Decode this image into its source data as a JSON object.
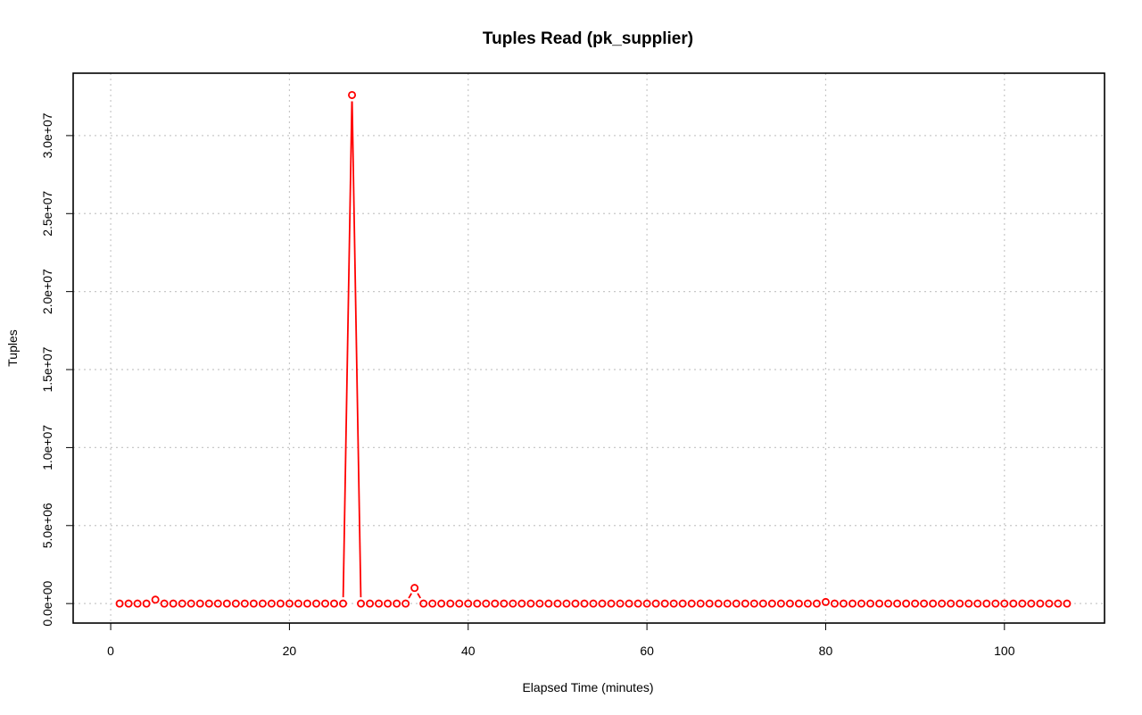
{
  "chart_data": {
    "type": "line",
    "title": "Tuples Read (pk_supplier)",
    "xlabel": "Elapsed Time (minutes)",
    "ylabel": "Tuples",
    "xlim": [
      -4.2,
      111.2
    ],
    "ylim": [
      -1250000,
      34000000
    ],
    "x_ticks": [
      0,
      20,
      40,
      60,
      80,
      100
    ],
    "x_tick_labels": [
      "0",
      "20",
      "40",
      "60",
      "80",
      "100"
    ],
    "y_ticks": [
      0,
      5000000,
      10000000,
      15000000,
      20000000,
      25000000,
      30000000
    ],
    "y_tick_labels": [
      "0.0e+00",
      "5.0e+06",
      "1.0e+07",
      "1.5e+07",
      "2.0e+07",
      "2.5e+07",
      "3.0e+07"
    ],
    "grid": true,
    "series_color": "#ff0000",
    "series": [
      {
        "x": [
          1,
          2,
          3,
          4,
          5,
          6,
          7,
          8,
          9,
          10,
          11,
          12,
          13,
          14,
          15,
          16,
          17,
          18,
          19,
          20,
          21,
          22,
          23,
          24,
          25,
          26,
          27,
          28,
          29,
          30,
          31,
          32,
          33,
          34,
          35,
          36,
          37,
          38,
          39,
          40,
          41,
          42,
          43,
          44,
          45,
          46,
          47,
          48,
          49,
          50,
          51,
          52,
          53,
          54,
          55,
          56,
          57,
          58,
          59,
          60,
          61,
          62,
          63,
          64,
          65,
          66,
          67,
          68,
          69,
          70,
          71,
          72,
          73,
          74,
          75,
          76,
          77,
          78,
          79,
          80,
          81,
          82,
          83,
          84,
          85,
          86,
          87,
          88,
          89,
          90,
          91,
          92,
          93,
          94,
          95,
          96,
          97,
          98,
          99,
          100,
          101,
          102,
          103,
          104,
          105,
          106,
          107
        ],
        "values": [
          0,
          0,
          0,
          0,
          250000,
          0,
          0,
          0,
          0,
          0,
          0,
          0,
          0,
          0,
          0,
          0,
          0,
          0,
          0,
          0,
          0,
          0,
          0,
          0,
          0,
          0,
          32600000,
          0,
          0,
          0,
          0,
          0,
          0,
          1000000,
          0,
          0,
          0,
          0,
          0,
          0,
          0,
          0,
          0,
          0,
          0,
          0,
          0,
          0,
          0,
          0,
          0,
          0,
          0,
          0,
          0,
          0,
          0,
          0,
          0,
          0,
          0,
          0,
          0,
          0,
          0,
          0,
          0,
          0,
          0,
          0,
          0,
          0,
          0,
          0,
          0,
          0,
          0,
          0,
          0,
          100000,
          0,
          0,
          0,
          0,
          0,
          0,
          0,
          0,
          0,
          0,
          0,
          0,
          0,
          0,
          0,
          0,
          0,
          0,
          0,
          0,
          0,
          0,
          0,
          0,
          0,
          0,
          0
        ]
      }
    ]
  }
}
